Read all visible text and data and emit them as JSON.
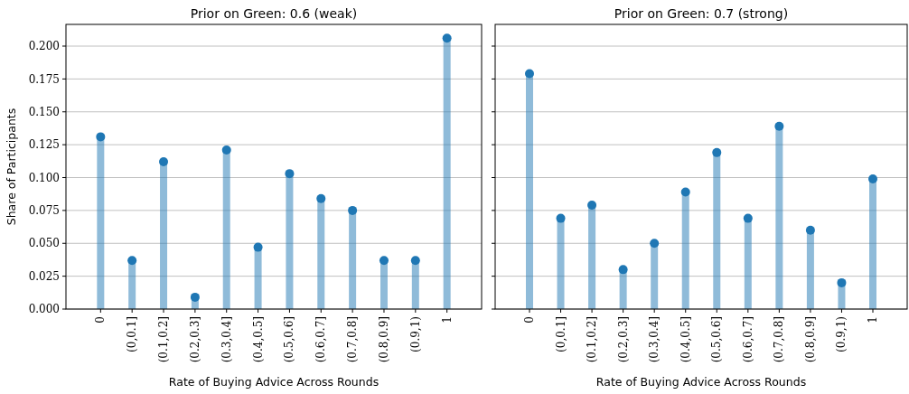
{
  "chart_data": [
    {
      "type": "lollipop",
      "title": "Prior on Green: 0.6 (weak)",
      "xlabel": "Rate of Buying Advice Across Rounds",
      "ylabel": "Share of Participants",
      "categories": [
        "0",
        "(0,0.1]",
        "(0.1,0.2]",
        "(0.2,0.3]",
        "(0.3,0.4]",
        "(0.4,0.5]",
        "(0.5,0.6]",
        "(0.6,0.7]",
        "(0.7,0.8]",
        "(0.8,0.9]",
        "(0.9,1)",
        "1"
      ],
      "values": [
        0.131,
        0.037,
        0.112,
        0.009,
        0.121,
        0.047,
        0.103,
        0.084,
        0.075,
        0.037,
        0.037,
        0.206
      ],
      "color": "#1f77b4",
      "marker": "circle",
      "grid": "y",
      "ylim": [
        0,
        0.2165
      ],
      "yticks": [
        {
          "value": 0,
          "label": "0.000"
        },
        {
          "value": 0.025,
          "label": "0.025"
        },
        {
          "value": 0.05,
          "label": "0.050"
        },
        {
          "value": 0.075,
          "label": "0.075"
        },
        {
          "value": 0.1,
          "label": "0.100"
        },
        {
          "value": 0.125,
          "label": "0.125"
        },
        {
          "value": 0.15,
          "label": "0.150"
        },
        {
          "value": 0.175,
          "label": "0.175"
        },
        {
          "value": 0.2,
          "label": "0.200"
        }
      ]
    },
    {
      "type": "lollipop",
      "title": "Prior on Green: 0.7 (strong)",
      "xlabel": "Rate of Buying Advice Across Rounds",
      "categories": [
        "0",
        "(0,0.1]",
        "(0.1,0.2]",
        "(0.2,0.3]",
        "(0.3,0.4]",
        "(0.4,0.5]",
        "(0.5,0.6]",
        "(0.6,0.7]",
        "(0.7,0.8]",
        "(0.8,0.9]",
        "(0.9,1)",
        "1"
      ],
      "values": [
        0.179,
        0.069,
        0.079,
        0.03,
        0.05,
        0.089,
        0.119,
        0.069,
        0.139,
        0.06,
        0.02,
        0.099
      ],
      "color": "#1f77b4",
      "marker": "circle",
      "grid": "y",
      "ylim": [
        0,
        0.2165
      ],
      "tick_labels": "x",
      "yticks": [
        {
          "value": 0,
          "label": null
        },
        {
          "value": 0.025,
          "label": null
        },
        {
          "value": 0.05,
          "label": null
        },
        {
          "value": 0.075,
          "label": null
        },
        {
          "value": 0.1,
          "label": null
        },
        {
          "value": 0.125,
          "label": null
        },
        {
          "value": 0.15,
          "label": null
        },
        {
          "value": 0.175,
          "label": null
        },
        {
          "value": 0.2,
          "label": null
        }
      ]
    }
  ]
}
